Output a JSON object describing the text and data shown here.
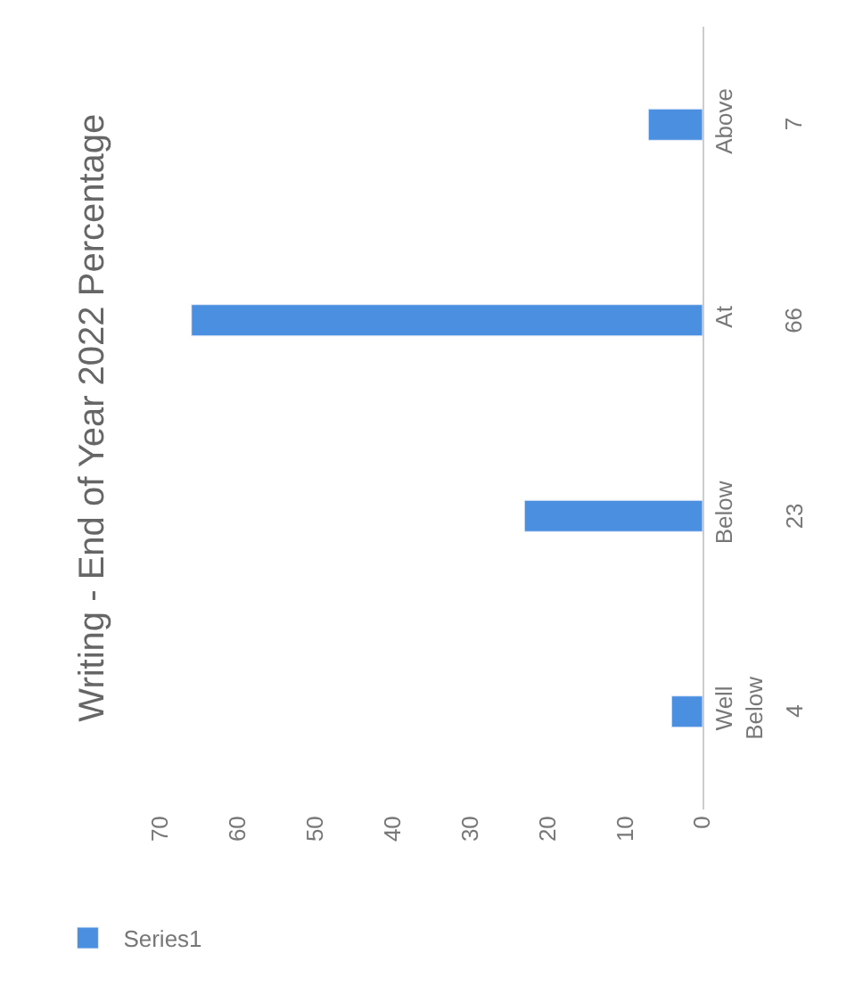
{
  "chart_data": {
    "type": "bar",
    "orientation": "horizontal",
    "title": "Writing - End of Year 2022 Percentage",
    "categories": [
      "Above",
      "At",
      "Below",
      "Well Below"
    ],
    "series": [
      {
        "name": "Series1",
        "color": "#4a8fe0",
        "values": [
          7,
          66,
          23,
          4
        ]
      }
    ],
    "xlim": [
      70,
      0
    ],
    "xticks": [
      0,
      10,
      20,
      30,
      40,
      50,
      60,
      70
    ],
    "data_labels": true,
    "legend": "bottom left"
  }
}
